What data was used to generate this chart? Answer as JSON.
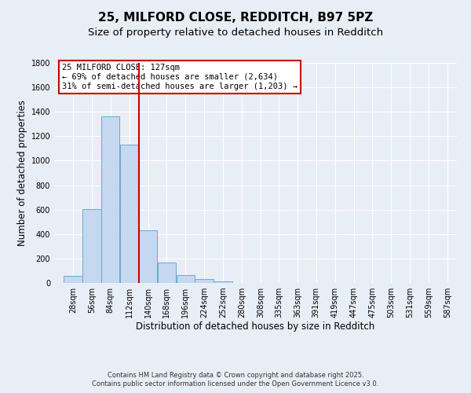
{
  "title_line1": "25, MILFORD CLOSE, REDDITCH, B97 5PZ",
  "title_line2": "Size of property relative to detached houses in Redditch",
  "xlabel": "Distribution of detached houses by size in Redditch",
  "ylabel": "Number of detached properties",
  "bin_labels": [
    "28sqm",
    "56sqm",
    "84sqm",
    "112sqm",
    "140sqm",
    "168sqm",
    "196sqm",
    "224sqm",
    "252sqm",
    "280sqm",
    "308sqm",
    "335sqm",
    "363sqm",
    "391sqm",
    "419sqm",
    "447sqm",
    "475sqm",
    "503sqm",
    "531sqm",
    "559sqm",
    "587sqm"
  ],
  "bin_centers": [
    28,
    56,
    84,
    112,
    140,
    168,
    196,
    224,
    252,
    280,
    308,
    335,
    363,
    391,
    419,
    447,
    475,
    503,
    531,
    559,
    587
  ],
  "bin_width": 28,
  "bar_values": [
    55,
    605,
    1360,
    1130,
    430,
    170,
    65,
    35,
    10,
    0,
    0,
    0,
    0,
    0,
    0,
    0,
    0,
    0,
    0,
    0,
    0
  ],
  "bar_facecolor": "#c5d8ef",
  "bar_edgecolor": "#6aaad4",
  "property_size": 127,
  "vline_color": "#cc0000",
  "annotation_line1": "25 MILFORD CLOSE: 127sqm",
  "annotation_line2": "← 69% of detached houses are smaller (2,634)",
  "annotation_line3": "31% of semi-detached houses are larger (1,203) →",
  "annotation_box_edgecolor": "#cc0000",
  "annotation_box_facecolor": "#ffffff",
  "ylim": [
    0,
    1800
  ],
  "yticks": [
    0,
    200,
    400,
    600,
    800,
    1000,
    1200,
    1400,
    1600,
    1800
  ],
  "xlim_min": 0,
  "xlim_max": 601,
  "bg_color": "#e8eef5",
  "plot_bg_color": "#e8eef5",
  "grid_color": "#ffffff",
  "footer_line1": "Contains HM Land Registry data © Crown copyright and database right 2025.",
  "footer_line2": "Contains public sector information licensed under the Open Government Licence v3.0.",
  "title_fontsize": 11,
  "subtitle_fontsize": 9.5,
  "tick_fontsize": 7,
  "label_fontsize": 8.5,
  "annotation_fontsize": 7.5,
  "footer_fontsize": 6
}
